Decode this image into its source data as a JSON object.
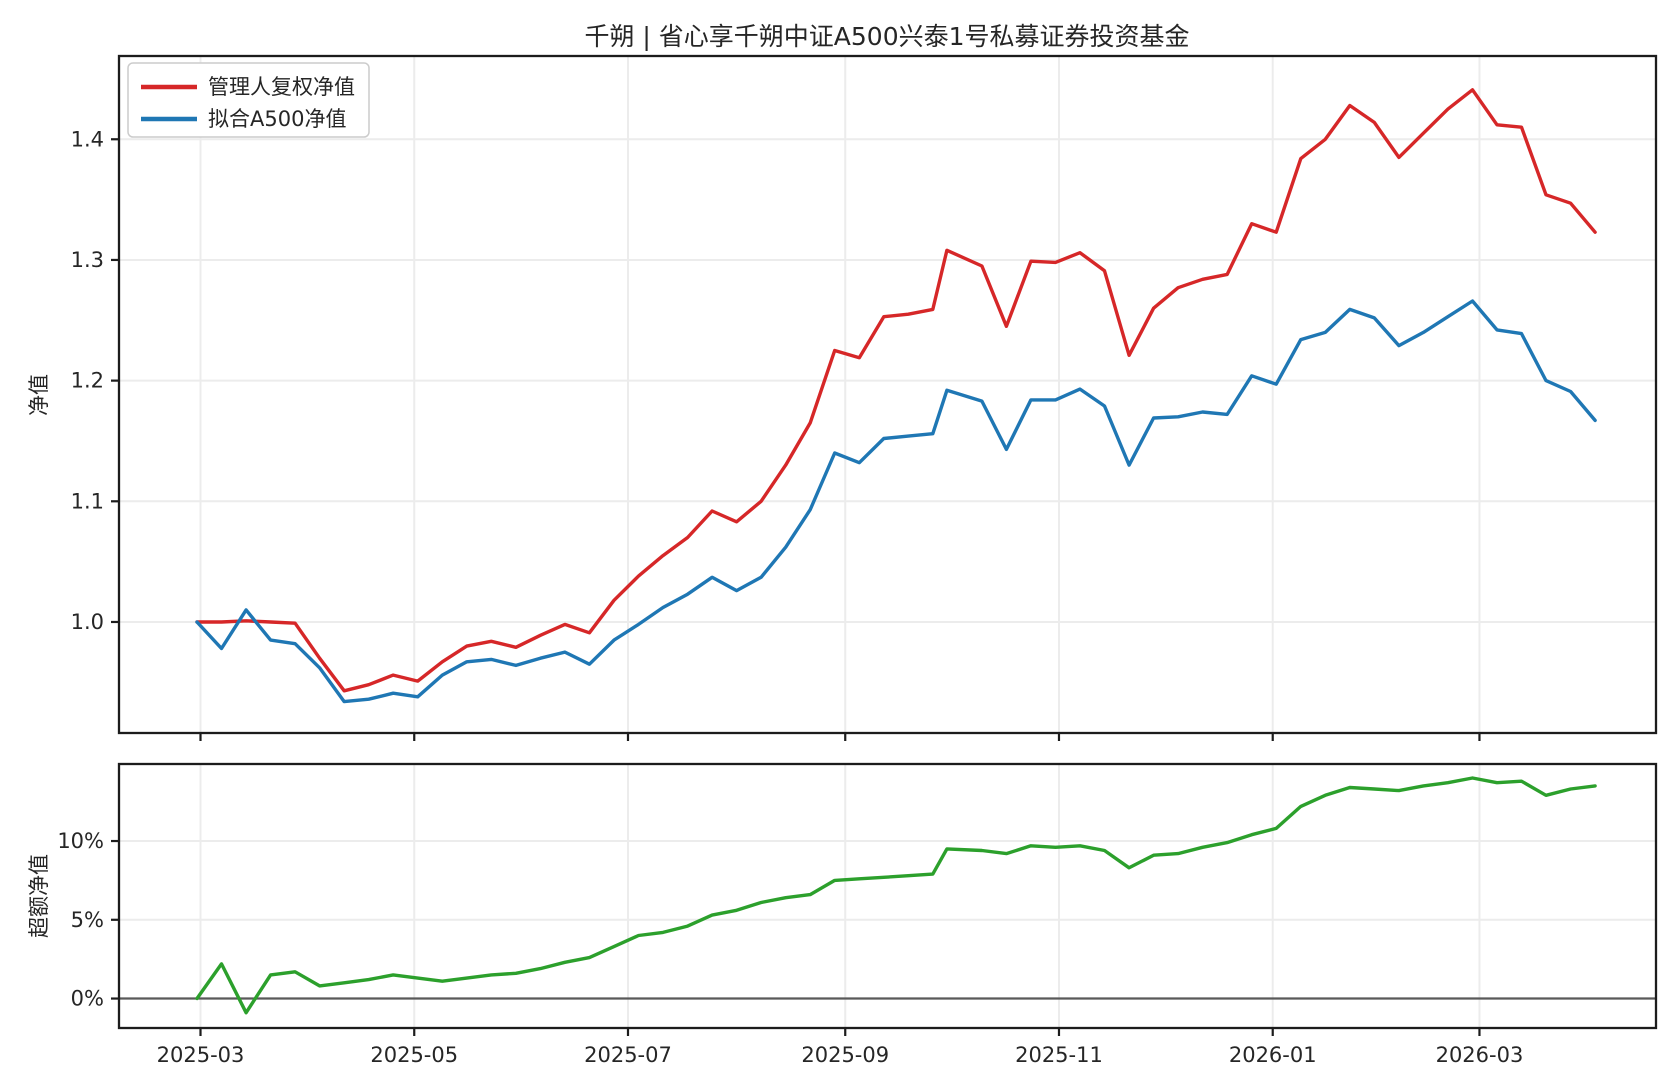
{
  "window": {
    "title": "千朔 | 省心享千朔中证A500兴泰1号私募证券投资基金"
  },
  "colors": {
    "manager_line": "#d62728",
    "index_line": "#1f77b4",
    "excess_line": "#2ca02c",
    "grid": "#ececec",
    "spine": "#1c1c1c",
    "zero_line": "#595959",
    "text": "#262626",
    "legend_border": "#cccccc",
    "background": "#ffffff"
  },
  "legend": {
    "items": [
      {
        "label": "管理人复权净值",
        "color": "#d62728"
      },
      {
        "label": "拟合A500净值",
        "color": "#1f77b4"
      }
    ]
  },
  "x_axis": {
    "ticks": [
      {
        "date": "2025-03-01",
        "label": "2025-03"
      },
      {
        "date": "2025-05-01",
        "label": "2025-05"
      },
      {
        "date": "2025-07-01",
        "label": "2025-07"
      },
      {
        "date": "2025-09-01",
        "label": "2025-09"
      },
      {
        "date": "2025-11-01",
        "label": "2025-11"
      },
      {
        "date": "2026-01-01",
        "label": "2026-01"
      },
      {
        "date": "2026-03-01",
        "label": "2026-03"
      }
    ]
  },
  "chart_data": [
    {
      "type": "line",
      "title": "千朔 | 省心享千朔中证A500兴泰1号私募证券投资基金",
      "xlabel": "",
      "ylabel": "净值",
      "ylim": [
        0.908,
        1.469
      ],
      "grid": true,
      "legend_position": "upper left",
      "yticks": [
        {
          "v": 1.0,
          "label": "1.0"
        },
        {
          "v": 1.1,
          "label": "1.1"
        },
        {
          "v": 1.2,
          "label": "1.2"
        },
        {
          "v": 1.3,
          "label": "1.3"
        },
        {
          "v": 1.4,
          "label": "1.4"
        }
      ],
      "x": [
        "2025-02-28",
        "2025-03-07",
        "2025-03-14",
        "2025-03-21",
        "2025-03-28",
        "2025-04-04",
        "2025-04-11",
        "2025-04-18",
        "2025-04-25",
        "2025-05-02",
        "2025-05-09",
        "2025-05-16",
        "2025-05-23",
        "2025-05-30",
        "2025-06-06",
        "2025-06-13",
        "2025-06-20",
        "2025-06-27",
        "2025-07-04",
        "2025-07-11",
        "2025-07-18",
        "2025-07-25",
        "2025-08-01",
        "2025-08-08",
        "2025-08-15",
        "2025-08-22",
        "2025-08-29",
        "2025-09-05",
        "2025-09-12",
        "2025-09-19",
        "2025-09-26",
        "2025-09-30",
        "2025-10-10",
        "2025-10-17",
        "2025-10-24",
        "2025-10-31",
        "2025-11-07",
        "2025-11-14",
        "2025-11-21",
        "2025-11-28",
        "2025-12-05",
        "2025-12-12",
        "2025-12-19",
        "2025-12-26",
        "2026-01-02",
        "2026-01-09",
        "2026-01-16",
        "2026-01-23",
        "2026-01-30",
        "2026-02-06",
        "2026-02-13",
        "2026-02-20",
        "2026-02-27",
        "2026-03-06",
        "2026-03-13",
        "2026-03-20",
        "2026-03-27",
        "2026-04-03"
      ],
      "series": [
        {
          "name": "管理人复权净值",
          "color": "#d62728",
          "values": [
            1.0,
            1.0,
            1.001,
            1.0,
            0.999,
            0.97,
            0.943,
            0.948,
            0.956,
            0.951,
            0.967,
            0.98,
            0.984,
            0.979,
            0.989,
            0.998,
            0.991,
            1.018,
            1.038,
            1.055,
            1.07,
            1.092,
            1.083,
            1.1,
            1.13,
            1.165,
            1.225,
            1.219,
            1.253,
            1.255,
            1.259,
            1.308,
            1.295,
            1.245,
            1.299,
            1.298,
            1.306,
            1.291,
            1.221,
            1.26,
            1.277,
            1.284,
            1.288,
            1.33,
            1.323,
            1.384,
            1.4,
            1.428,
            1.414,
            1.385,
            1.405,
            1.425,
            1.441,
            1.412,
            1.41,
            1.354,
            1.347,
            1.323
          ]
        },
        {
          "name": "拟合A500净值",
          "color": "#1f77b4",
          "values": [
            1.0,
            0.978,
            1.01,
            0.985,
            0.982,
            0.962,
            0.934,
            0.936,
            0.941,
            0.938,
            0.956,
            0.967,
            0.969,
            0.964,
            0.97,
            0.975,
            0.965,
            0.985,
            0.998,
            1.012,
            1.023,
            1.037,
            1.026,
            1.037,
            1.062,
            1.093,
            1.14,
            1.132,
            1.152,
            1.154,
            1.156,
            1.192,
            1.183,
            1.143,
            1.184,
            1.184,
            1.193,
            1.179,
            1.13,
            1.169,
            1.17,
            1.174,
            1.172,
            1.204,
            1.197,
            1.234,
            1.24,
            1.259,
            1.252,
            1.229,
            1.24,
            1.253,
            1.266,
            1.242,
            1.239,
            1.2,
            1.191,
            1.167
          ]
        }
      ]
    },
    {
      "type": "line",
      "title": "",
      "xlabel": "",
      "ylabel": "超额净值",
      "ylim": [
        -1.87,
        14.89
      ],
      "grid": true,
      "zero_line": true,
      "yticks": [
        {
          "v": 0,
          "label": "0%"
        },
        {
          "v": 5,
          "label": "5%"
        },
        {
          "v": 10,
          "label": "10%"
        }
      ],
      "x": [
        "2025-02-28",
        "2025-03-07",
        "2025-03-14",
        "2025-03-21",
        "2025-03-28",
        "2025-04-04",
        "2025-04-11",
        "2025-04-18",
        "2025-04-25",
        "2025-05-02",
        "2025-05-09",
        "2025-05-16",
        "2025-05-23",
        "2025-05-30",
        "2025-06-06",
        "2025-06-13",
        "2025-06-20",
        "2025-06-27",
        "2025-07-04",
        "2025-07-11",
        "2025-07-18",
        "2025-07-25",
        "2025-08-01",
        "2025-08-08",
        "2025-08-15",
        "2025-08-22",
        "2025-08-29",
        "2025-09-05",
        "2025-09-12",
        "2025-09-19",
        "2025-09-26",
        "2025-09-30",
        "2025-10-10",
        "2025-10-17",
        "2025-10-24",
        "2025-10-31",
        "2025-11-07",
        "2025-11-14",
        "2025-11-21",
        "2025-11-28",
        "2025-12-05",
        "2025-12-12",
        "2025-12-19",
        "2025-12-26",
        "2026-01-02",
        "2026-01-09",
        "2026-01-16",
        "2026-01-23",
        "2026-01-30",
        "2026-02-06",
        "2026-02-13",
        "2026-02-20",
        "2026-02-27",
        "2026-03-06",
        "2026-03-13",
        "2026-03-20",
        "2026-03-27",
        "2026-04-03"
      ],
      "series": [
        {
          "name": "超额净值",
          "color": "#2ca02c",
          "values": [
            0.0,
            2.2,
            -0.9,
            1.5,
            1.7,
            0.8,
            1.0,
            1.2,
            1.5,
            1.3,
            1.1,
            1.3,
            1.5,
            1.6,
            1.9,
            2.3,
            2.6,
            3.3,
            4.0,
            4.2,
            4.6,
            5.3,
            5.6,
            6.1,
            6.4,
            6.6,
            7.5,
            7.6,
            7.7,
            7.8,
            7.9,
            9.5,
            9.4,
            9.2,
            9.7,
            9.6,
            9.7,
            9.4,
            8.3,
            9.1,
            9.2,
            9.6,
            9.9,
            10.4,
            10.8,
            12.2,
            12.9,
            13.4,
            13.3,
            13.2,
            13.5,
            13.7,
            14.0,
            13.7,
            13.8,
            12.9,
            13.3,
            13.5
          ]
        }
      ]
    }
  ]
}
